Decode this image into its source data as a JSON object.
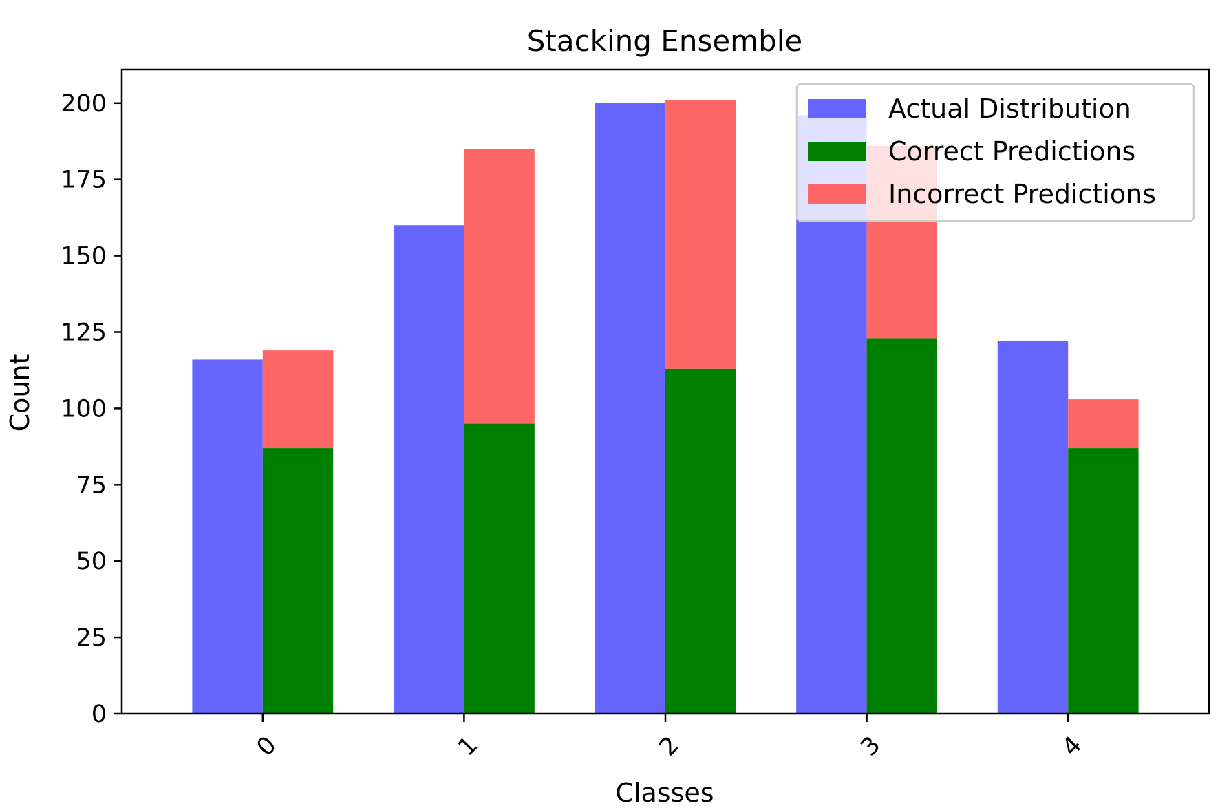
{
  "chart_data": {
    "type": "bar",
    "title": "Stacking Ensemble",
    "xlabel": "Classes",
    "ylabel": "Count",
    "categories": [
      "0",
      "1",
      "2",
      "3",
      "4"
    ],
    "ylim": [
      0,
      211
    ],
    "yticks": [
      0,
      25,
      50,
      75,
      100,
      125,
      150,
      175,
      200
    ],
    "grid": false,
    "legend_placement": "top-right",
    "series": [
      {
        "name": "Actual Distribution",
        "color": "#6666ff",
        "values": [
          116,
          160,
          200,
          196,
          122
        ]
      },
      {
        "name": "Correct Predictions",
        "color": "#008000",
        "values": [
          87,
          95,
          113,
          123,
          87
        ]
      },
      {
        "name": "Incorrect Predictions",
        "color": "#ff6666",
        "values": [
          32,
          90,
          88,
          63,
          16
        ]
      }
    ]
  }
}
